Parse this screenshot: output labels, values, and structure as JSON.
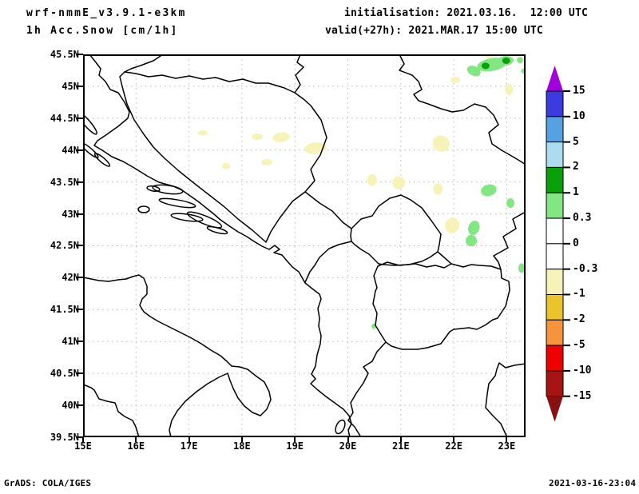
{
  "header": {
    "model_line1": "wrf-nmmE_v3.9.1-e3km",
    "model_line2": "1h Acc.Snow [cm/1h]",
    "init_line": "initialisation: 2021.03.16.  12:00 UTC",
    "valid_line": "valid(+27h): 2021.MAR.17 15:00 UTC"
  },
  "footer": {
    "left": "GrADS: COLA/IGES",
    "right": "2021-03-16-23:04"
  },
  "chart_data": {
    "type": "heatmap",
    "subtype": "filled-contour weather map",
    "title": "1h Acc.Snow [cm/1h]",
    "region": "Balkans / Adriatic",
    "x_axis": {
      "labels": [
        "15E",
        "16E",
        "17E",
        "18E",
        "19E",
        "20E",
        "21E",
        "22E",
        "23E"
      ],
      "range_deg": [
        15.0,
        23.35
      ],
      "grid": "dashed"
    },
    "y_axis": {
      "labels": [
        "45.5N",
        "45N",
        "44.5N",
        "44N",
        "43.5N",
        "43N",
        "42.5N",
        "42N",
        "41.5N",
        "41N",
        "40.5N",
        "40N",
        "39.5N"
      ],
      "range_deg": [
        39.5,
        45.5
      ],
      "grid": "dashed"
    },
    "colorbar": {
      "levels": [
        "15",
        "10",
        "5",
        "2",
        "1",
        "0.3",
        "0",
        "-0.3",
        "-1",
        "-2",
        "-5",
        "-10",
        "-15"
      ],
      "segment_colors_top_to_bottom": [
        "#3b3bdf",
        "#55a1e1",
        "#abdcf0",
        "#0aa00a",
        "#82e682",
        "#ffffff",
        "#ffffff",
        "#f7f3b8",
        "#eac32d",
        "#f5943c",
        "#ee0000",
        "#a81414"
      ],
      "above_top_color": "#a000dc",
      "below_bottom_color": "#871111"
    },
    "spot_bands": [
      {
        "id": "snow_light",
        "range": "0.3 to 1 cm/1h",
        "color": "#82e682"
      },
      {
        "id": "snow_mod",
        "range": "1 to 2 cm/1h",
        "color": "#0aa00a"
      },
      {
        "id": "neg_light",
        "range": "-1 to -0.3 cm/1h",
        "color": "#f7f3b8"
      }
    ],
    "spots": [
      {
        "lon": 22.72,
        "lat": 45.34,
        "w": 0.57,
        "h": 0.2,
        "rot": -10,
        "band": "snow_light"
      },
      {
        "lon": 22.38,
        "lat": 45.24,
        "w": 0.27,
        "h": 0.15,
        "rot": 25,
        "band": "snow_light"
      },
      {
        "lon": 22.98,
        "lat": 45.4,
        "w": 0.3,
        "h": 0.15,
        "rot": -5,
        "band": "snow_light"
      },
      {
        "lon": 23.25,
        "lat": 45.41,
        "w": 0.12,
        "h": 0.1,
        "rot": 0,
        "band": "snow_light"
      },
      {
        "lon": 23.33,
        "lat": 45.24,
        "w": 0.12,
        "h": 0.08,
        "rot": 0,
        "band": "snow_light"
      },
      {
        "lon": 22.6,
        "lat": 45.32,
        "w": 0.15,
        "h": 0.1,
        "rot": 0,
        "band": "snow_mod"
      },
      {
        "lon": 22.99,
        "lat": 45.4,
        "w": 0.15,
        "h": 0.1,
        "rot": 0,
        "band": "snow_mod"
      },
      {
        "lon": 22.66,
        "lat": 43.37,
        "w": 0.3,
        "h": 0.18,
        "rot": -15,
        "band": "snow_light"
      },
      {
        "lon": 23.07,
        "lat": 43.17,
        "w": 0.15,
        "h": 0.15,
        "rot": 0,
        "band": "snow_light"
      },
      {
        "lon": 22.38,
        "lat": 42.78,
        "w": 0.21,
        "h": 0.23,
        "rot": 20,
        "band": "snow_light"
      },
      {
        "lon": 22.33,
        "lat": 42.58,
        "w": 0.21,
        "h": 0.18,
        "rot": -10,
        "band": "snow_light"
      },
      {
        "lon": 20.49,
        "lat": 41.24,
        "w": 0.09,
        "h": 0.08,
        "rot": 0,
        "band": "snow_light"
      },
      {
        "lon": 23.28,
        "lat": 42.15,
        "w": 0.12,
        "h": 0.15,
        "rot": 0,
        "band": "snow_light"
      },
      {
        "lon": 18.74,
        "lat": 44.2,
        "w": 0.33,
        "h": 0.15,
        "rot": -8,
        "band": "neg_light"
      },
      {
        "lon": 18.29,
        "lat": 44.21,
        "w": 0.21,
        "h": 0.1,
        "rot": 0,
        "band": "neg_light"
      },
      {
        "lon": 18.47,
        "lat": 43.81,
        "w": 0.21,
        "h": 0.1,
        "rot": 0,
        "band": "neg_light"
      },
      {
        "lon": 21.76,
        "lat": 44.1,
        "w": 0.33,
        "h": 0.25,
        "rot": 30,
        "band": "neg_light"
      },
      {
        "lon": 19.39,
        "lat": 44.03,
        "w": 0.42,
        "h": 0.18,
        "rot": -6,
        "band": "neg_light"
      },
      {
        "lon": 20.46,
        "lat": 43.53,
        "w": 0.18,
        "h": 0.18,
        "rot": 0,
        "band": "neg_light"
      },
      {
        "lon": 20.96,
        "lat": 43.49,
        "w": 0.24,
        "h": 0.2,
        "rot": 0,
        "band": "neg_light"
      },
      {
        "lon": 21.97,
        "lat": 42.82,
        "w": 0.27,
        "h": 0.25,
        "rot": 15,
        "band": "neg_light"
      },
      {
        "lon": 23.04,
        "lat": 44.95,
        "w": 0.15,
        "h": 0.18,
        "rot": 0,
        "band": "neg_light"
      },
      {
        "lon": 22.66,
        "lat": 45.49,
        "w": 0.21,
        "h": 0.1,
        "rot": 0,
        "band": "neg_light"
      },
      {
        "lon": 21.7,
        "lat": 43.39,
        "w": 0.18,
        "h": 0.18,
        "rot": 0,
        "band": "neg_light"
      },
      {
        "lon": 17.7,
        "lat": 43.75,
        "w": 0.15,
        "h": 0.1,
        "rot": 0,
        "band": "neg_light"
      },
      {
        "lon": 22.03,
        "lat": 45.1,
        "w": 0.18,
        "h": 0.1,
        "rot": 0,
        "band": "neg_light"
      },
      {
        "lon": 17.26,
        "lat": 44.27,
        "w": 0.18,
        "h": 0.08,
        "rot": 0,
        "band": "neg_light"
      }
    ],
    "grid_color": "#b9b9b9"
  }
}
